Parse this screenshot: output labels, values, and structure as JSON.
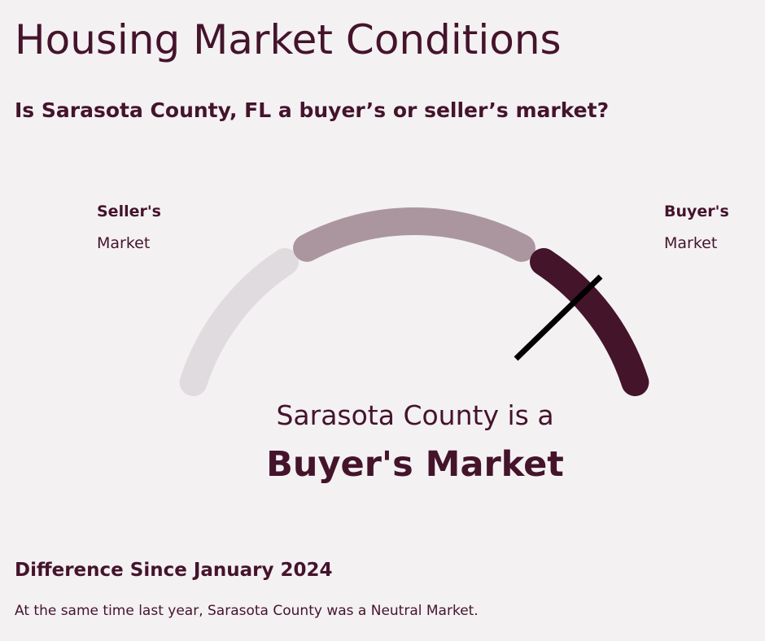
{
  "header": {
    "title": "Housing Market Conditions",
    "question": "Is Sarasota County, FL a buyer’s or seller’s market?"
  },
  "gauge": {
    "left_label": {
      "title": "Seller's",
      "subtitle": "Market"
    },
    "right_label": {
      "title": "Buyer's",
      "subtitle": "Market"
    },
    "status": {
      "prefix": "Sarasota County is a",
      "result": "Buyer's Market"
    }
  },
  "difference": {
    "heading": "Difference Since January 2024",
    "text": "At the same time last year, Sarasota County was a Neutral Market."
  }
}
